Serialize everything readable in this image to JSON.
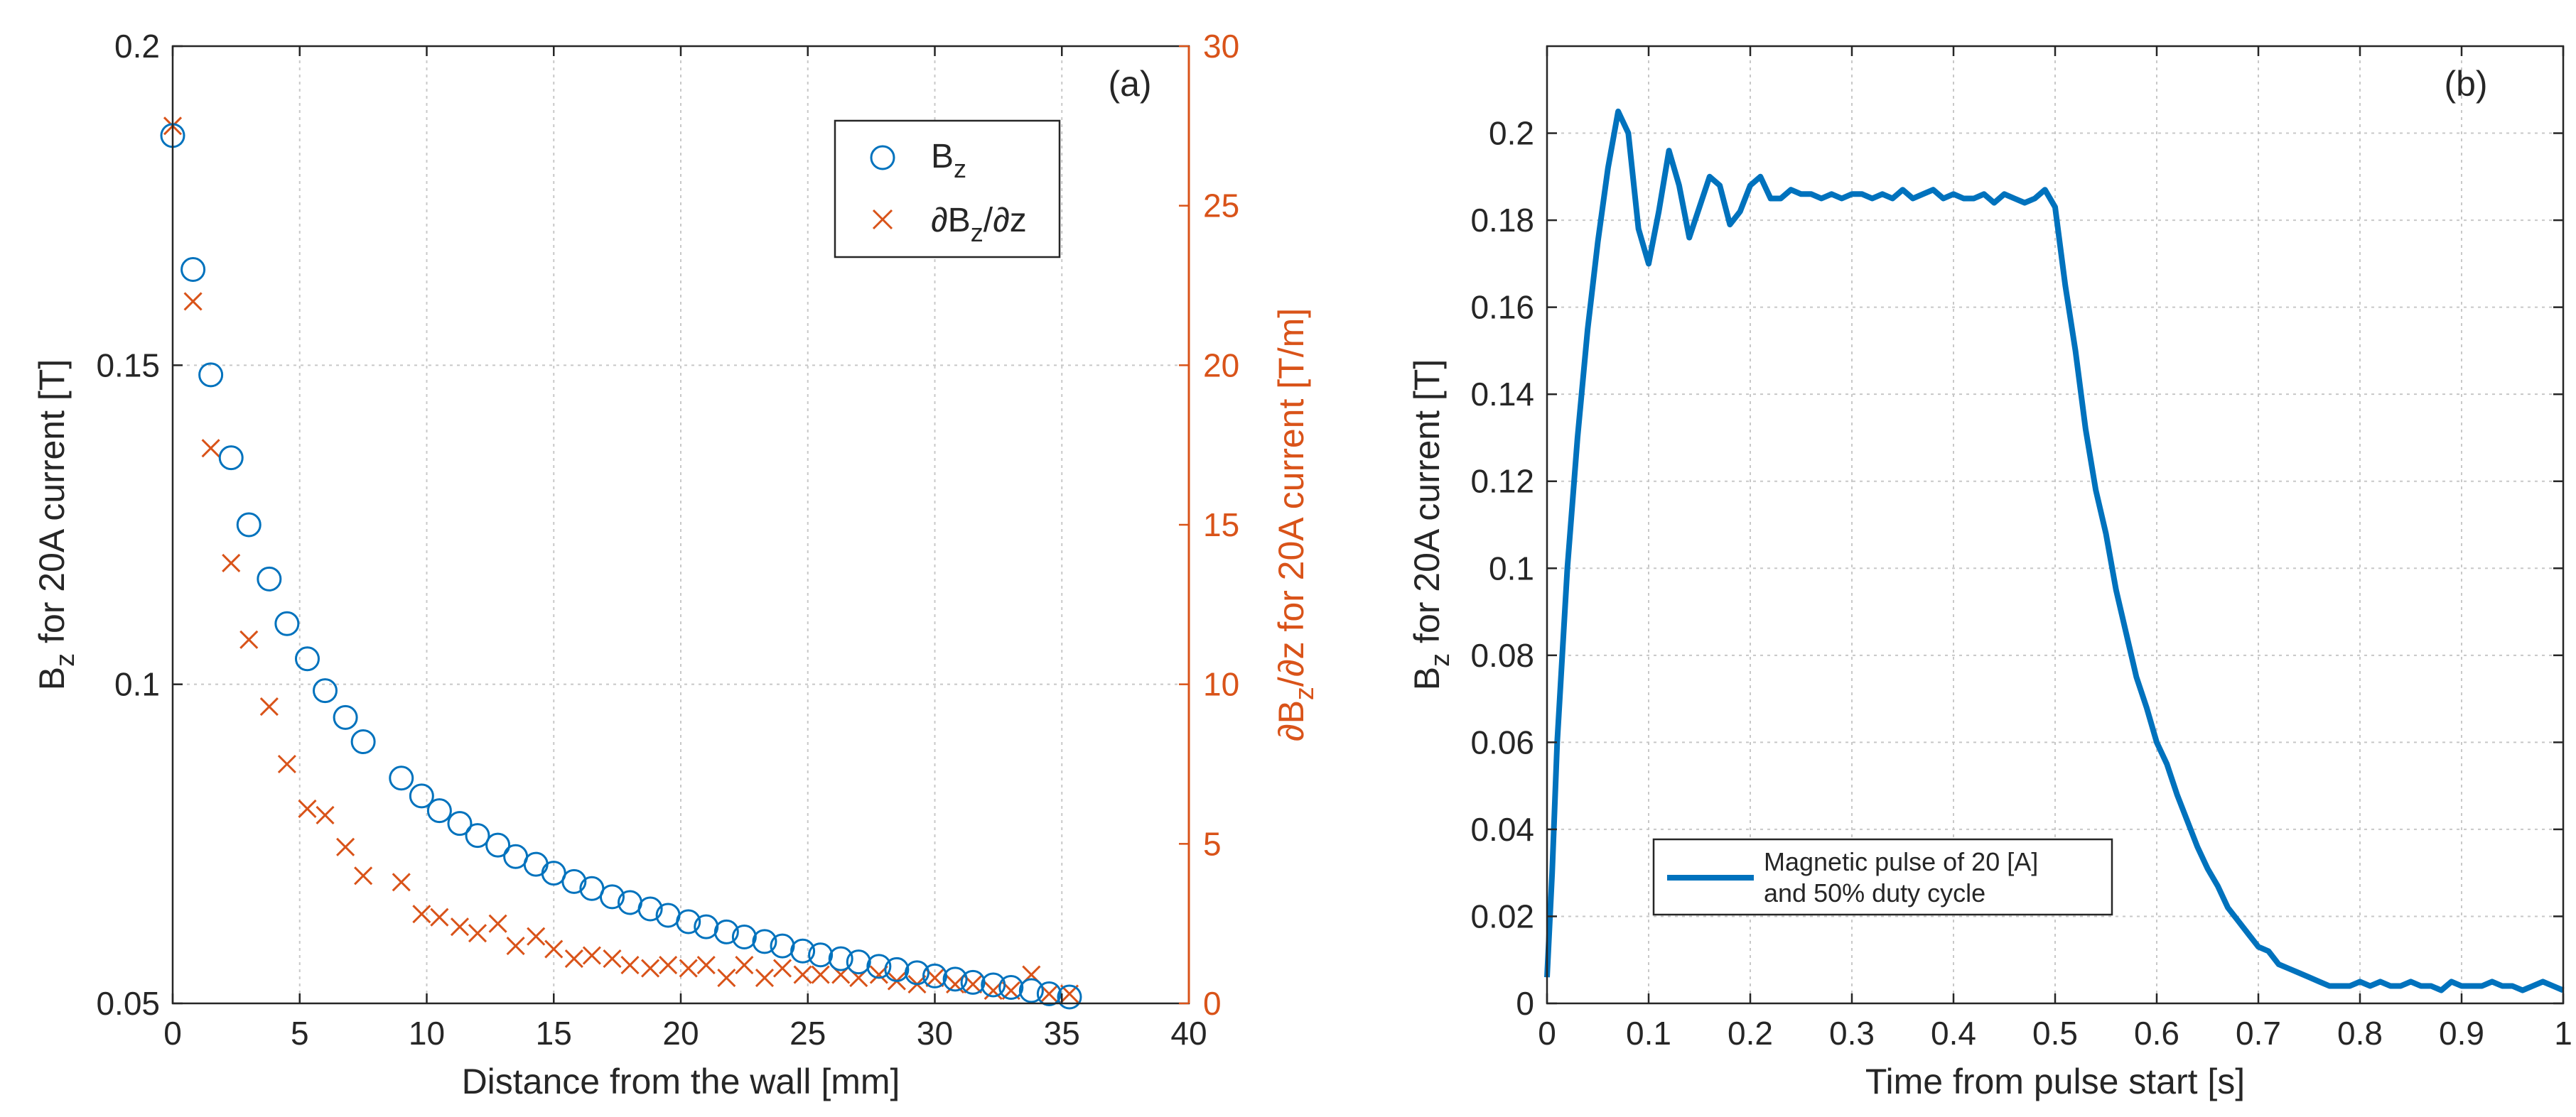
{
  "chart_data": [
    {
      "type": "scatter",
      "panel_label": "(a)",
      "xlabel": "Distance from the wall [mm]",
      "ylabel_left": {
        "main": "B",
        "sub": "z",
        "rest": " for 20A current [T]"
      },
      "ylabel_right": {
        "part1": "∂B",
        "sub": "z",
        "part2": "/∂z for 20A current [T/m]"
      },
      "xlim": [
        0,
        40
      ],
      "ylim_left": [
        0.05,
        0.2
      ],
      "ylim_right": [
        0,
        30
      ],
      "xticks": [
        "0",
        "5",
        "10",
        "15",
        "20",
        "25",
        "30",
        "35",
        "40"
      ],
      "yticks_left": [
        "0.05",
        "0.1",
        "0.15",
        "0.2"
      ],
      "yticks_right": [
        "0",
        "5",
        "10",
        "15",
        "20",
        "25",
        "30"
      ],
      "grid": true,
      "legend": {
        "placement": "top-right",
        "entries": [
          {
            "label_main": "B",
            "label_sub": "z",
            "label_rest": "",
            "marker": "circle"
          },
          {
            "label_main": "∂B",
            "label_sub": "z",
            "label_rest": "/∂z",
            "marker": "x"
          }
        ]
      },
      "colors": {
        "bz": "#0072BD",
        "dbz": "#D95319"
      },
      "series": [
        {
          "name": "Bz",
          "axis": "left",
          "x": [
            0,
            0.8,
            1.5,
            2.3,
            3.0,
            3.8,
            4.5,
            5.3,
            6.0,
            6.8,
            7.5,
            9.0,
            9.8,
            10.5,
            11.3,
            12.0,
            12.8,
            13.5,
            14.3,
            15.0,
            15.8,
            16.5,
            17.3,
            18.0,
            18.8,
            19.5,
            20.3,
            21.0,
            21.8,
            22.5,
            23.3,
            24.0,
            24.8,
            25.5,
            26.3,
            27.0,
            27.8,
            28.5,
            29.3,
            30.0,
            30.8,
            31.5,
            32.3,
            33.0,
            33.8,
            34.5,
            35.3
          ],
          "values": [
            0.186,
            0.165,
            0.1485,
            0.1355,
            0.125,
            0.1165,
            0.1095,
            0.104,
            0.099,
            0.0948,
            0.091,
            0.0853,
            0.0825,
            0.0802,
            0.0782,
            0.0763,
            0.0748,
            0.073,
            0.0718,
            0.0704,
            0.0691,
            0.068,
            0.0667,
            0.0658,
            0.0648,
            0.0638,
            0.0628,
            0.062,
            0.0612,
            0.0604,
            0.0597,
            0.059,
            0.0582,
            0.0576,
            0.057,
            0.0565,
            0.0558,
            0.0553,
            0.0548,
            0.0543,
            0.0538,
            0.0533,
            0.0529,
            0.0525,
            0.052,
            0.0515,
            0.051
          ]
        },
        {
          "name": "dBz/dz",
          "axis": "right",
          "x": [
            0,
            0.8,
            1.5,
            2.3,
            3.0,
            3.8,
            4.5,
            5.3,
            6.0,
            6.8,
            7.5,
            9.0,
            9.8,
            10.5,
            11.3,
            12.0,
            12.8,
            13.5,
            14.3,
            15.0,
            15.8,
            16.5,
            17.3,
            18.0,
            18.8,
            19.5,
            20.3,
            21.0,
            21.8,
            22.5,
            23.3,
            24.0,
            24.8,
            25.5,
            26.3,
            27.0,
            27.8,
            28.5,
            29.3,
            30.0,
            30.8,
            31.5,
            32.3,
            33.0,
            33.8,
            34.5,
            35.3
          ],
          "values": [
            27.5,
            22.0,
            17.4,
            13.8,
            11.4,
            9.3,
            7.5,
            6.1,
            5.9,
            4.9,
            4.0,
            3.8,
            2.8,
            2.7,
            2.4,
            2.2,
            2.5,
            1.8,
            2.1,
            1.7,
            1.4,
            1.5,
            1.4,
            1.2,
            1.1,
            1.2,
            1.1,
            1.2,
            0.8,
            1.2,
            0.8,
            1.1,
            0.9,
            0.9,
            0.9,
            0.8,
            0.9,
            0.7,
            0.6,
            0.8,
            0.6,
            0.6,
            0.4,
            0.4,
            0.9,
            0.3,
            0.3
          ]
        }
      ]
    },
    {
      "type": "line",
      "panel_label": "(b)",
      "xlabel": "Time from pulse start [s]",
      "ylabel": {
        "main": "B",
        "sub": "z",
        "rest": " for 20A current [T]"
      },
      "xlim": [
        0,
        1
      ],
      "ylim": [
        0,
        0.22
      ],
      "xticks": [
        "0",
        "0.1",
        "0.2",
        "0.3",
        "0.4",
        "0.5",
        "0.6",
        "0.7",
        "0.8",
        "0.9",
        "1"
      ],
      "yticks": [
        "0",
        "0.02",
        "0.04",
        "0.06",
        "0.08",
        "0.1",
        "0.12",
        "0.14",
        "0.16",
        "0.18",
        "0.2"
      ],
      "grid": true,
      "legend": {
        "placement": "bottom-left",
        "entries": [
          {
            "line1": "Magnetic pulse of 20 [A]",
            "line2": "and 50% duty cycle"
          }
        ]
      },
      "color": "#0072BD",
      "series": [
        {
          "name": "Magnetic pulse of 20 [A] and 50% duty cycle",
          "x": [
            0,
            0.005,
            0.01,
            0.02,
            0.03,
            0.04,
            0.05,
            0.06,
            0.07,
            0.08,
            0.09,
            0.1,
            0.11,
            0.12,
            0.13,
            0.14,
            0.15,
            0.16,
            0.17,
            0.18,
            0.19,
            0.2,
            0.21,
            0.22,
            0.23,
            0.24,
            0.25,
            0.26,
            0.27,
            0.28,
            0.29,
            0.3,
            0.31,
            0.32,
            0.33,
            0.34,
            0.35,
            0.36,
            0.37,
            0.38,
            0.39,
            0.4,
            0.41,
            0.42,
            0.43,
            0.44,
            0.45,
            0.46,
            0.47,
            0.48,
            0.49,
            0.5,
            0.51,
            0.52,
            0.53,
            0.54,
            0.55,
            0.56,
            0.57,
            0.58,
            0.59,
            0.6,
            0.61,
            0.62,
            0.63,
            0.64,
            0.65,
            0.66,
            0.67,
            0.68,
            0.69,
            0.7,
            0.71,
            0.72,
            0.73,
            0.74,
            0.75,
            0.76,
            0.77,
            0.78,
            0.79,
            0.8,
            0.81,
            0.82,
            0.83,
            0.84,
            0.85,
            0.86,
            0.87,
            0.88,
            0.89,
            0.9,
            0.91,
            0.92,
            0.93,
            0.94,
            0.95,
            0.96,
            0.97,
            0.98,
            0.99,
            1.0
          ],
          "values": [
            0.006,
            0.03,
            0.06,
            0.1,
            0.13,
            0.155,
            0.175,
            0.192,
            0.205,
            0.2,
            0.178,
            0.17,
            0.182,
            0.196,
            0.188,
            0.176,
            0.183,
            0.19,
            0.188,
            0.179,
            0.182,
            0.188,
            0.19,
            0.185,
            0.185,
            0.187,
            0.186,
            0.186,
            0.185,
            0.186,
            0.185,
            0.186,
            0.186,
            0.185,
            0.186,
            0.185,
            0.187,
            0.185,
            0.186,
            0.187,
            0.185,
            0.186,
            0.185,
            0.185,
            0.186,
            0.184,
            0.186,
            0.185,
            0.184,
            0.185,
            0.187,
            0.183,
            0.165,
            0.15,
            0.132,
            0.118,
            0.108,
            0.095,
            0.085,
            0.075,
            0.068,
            0.06,
            0.055,
            0.048,
            0.042,
            0.036,
            0.031,
            0.027,
            0.022,
            0.019,
            0.016,
            0.013,
            0.012,
            0.009,
            0.008,
            0.007,
            0.006,
            0.005,
            0.004,
            0.004,
            0.004,
            0.005,
            0.004,
            0.005,
            0.004,
            0.004,
            0.005,
            0.004,
            0.004,
            0.003,
            0.005,
            0.004,
            0.004,
            0.004,
            0.005,
            0.004,
            0.004,
            0.003,
            0.004,
            0.005,
            0.004,
            0.003
          ]
        }
      ]
    }
  ]
}
